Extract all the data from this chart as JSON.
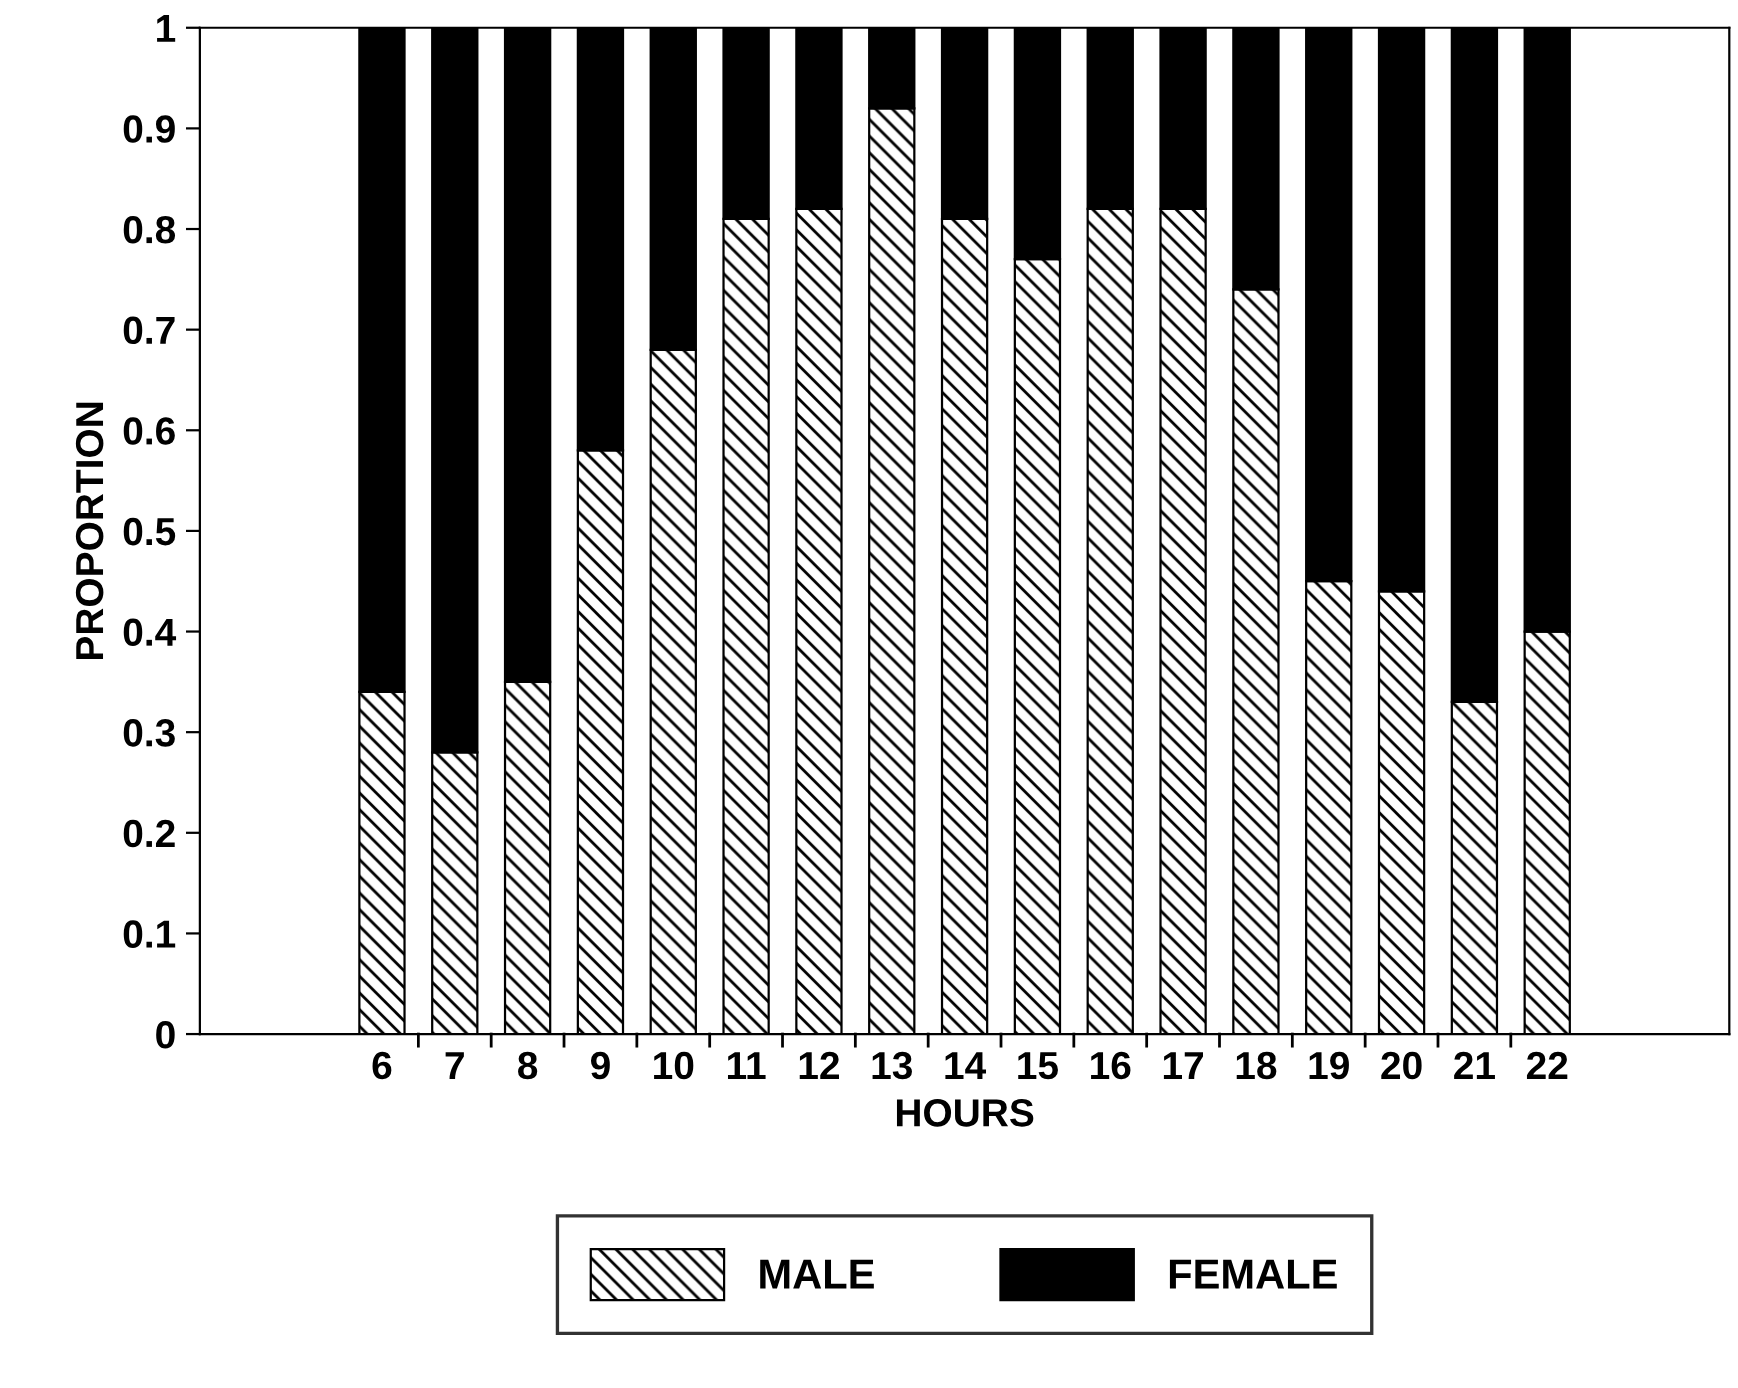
{
  "chart_data": {
    "type": "bar",
    "stacked": true,
    "xlabel": "HOURS",
    "ylabel": "PROPORTION",
    "categories": [
      null,
      null,
      "6",
      "7",
      "8",
      "9",
      "10",
      "11",
      "12",
      "13",
      "14",
      "15",
      "16",
      "17",
      "18",
      "19",
      "20",
      "21",
      "22",
      null,
      null
    ],
    "series": [
      {
        "name": "MALE",
        "color": "#000000",
        "values": [
          null,
          null,
          0.34,
          0.28,
          0.35,
          0.58,
          0.68,
          0.81,
          0.82,
          0.92,
          0.81,
          0.77,
          0.82,
          0.82,
          0.74,
          0.45,
          0.44,
          0.33,
          0.4,
          null,
          null
        ]
      },
      {
        "name": "FEMALE",
        "color": "#000000",
        "values": [
          null,
          null,
          0.66,
          0.72,
          0.65,
          0.42,
          0.32,
          0.19,
          0.18,
          0.08,
          0.19,
          0.23,
          0.18,
          0.18,
          0.26,
          0.55,
          0.56,
          0.67,
          0.6,
          null,
          null
        ]
      }
    ],
    "ylim": [
      0,
      1
    ],
    "yticks": [
      0,
      0.1,
      0.2,
      0.3,
      0.4,
      0.5,
      0.6,
      0.7,
      0.8,
      0.9,
      1
    ],
    "grid": false,
    "legend": "bottom"
  }
}
